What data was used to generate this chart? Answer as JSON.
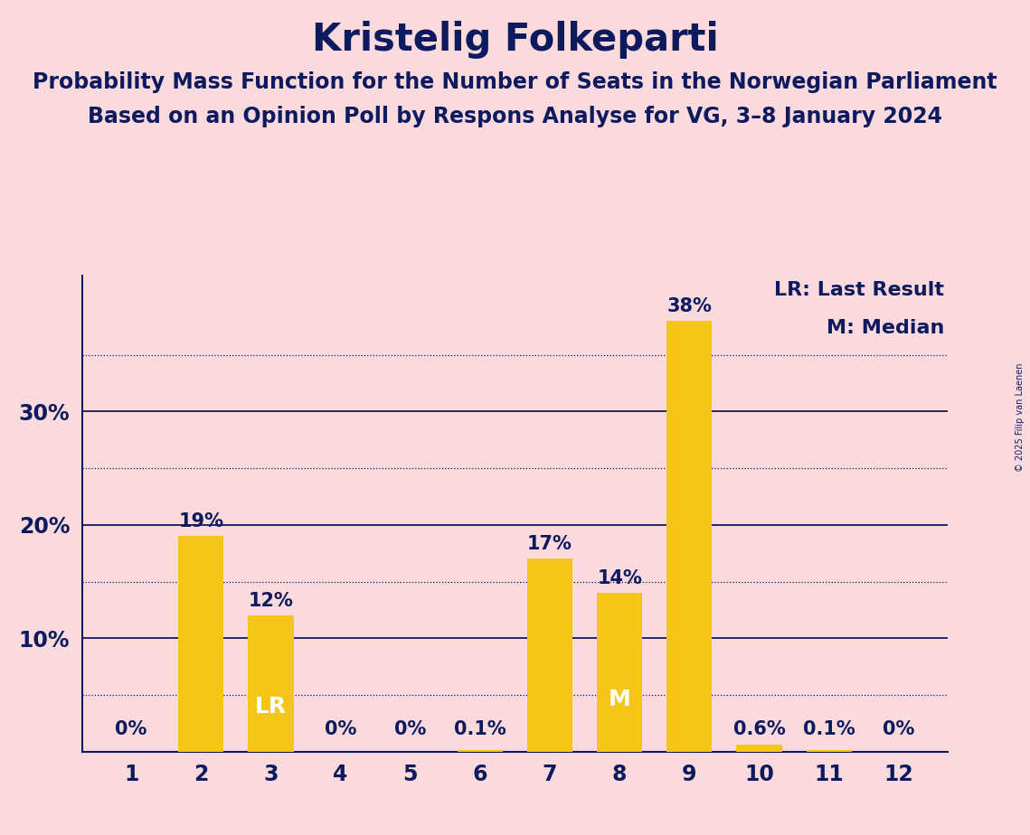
{
  "title": "Kristelig Folkeparti",
  "subtitle1": "Probability Mass Function for the Number of Seats in the Norwegian Parliament",
  "subtitle2": "Based on an Opinion Poll by Respons Analyse for VG, 3–8 January 2024",
  "copyright": "© 2025 Filip van Laenen",
  "categories": [
    1,
    2,
    3,
    4,
    5,
    6,
    7,
    8,
    9,
    10,
    11,
    12
  ],
  "values": [
    0.0,
    19.0,
    12.0,
    0.0,
    0.0,
    0.1,
    17.0,
    14.0,
    38.0,
    0.6,
    0.1,
    0.0
  ],
  "bar_labels": [
    "0%",
    "19%",
    "12%",
    "0%",
    "0%",
    "0.1%",
    "17%",
    "14%",
    "38%",
    "0.6%",
    "0.1%",
    "0%"
  ],
  "bar_color": "#F5C518",
  "background_color": "#FADADD",
  "text_color": "#0D1B5E",
  "title_fontsize": 30,
  "subtitle_fontsize": 17,
  "label_fontsize": 15,
  "tick_fontsize": 17,
  "ylim": [
    0,
    42
  ],
  "solid_gridlines": [
    10,
    20,
    30
  ],
  "dotted_gridlines": [
    5,
    15,
    25,
    35
  ],
  "lr_bar": 3,
  "median_bar": 8,
  "legend_lr": "LR: Last Result",
  "legend_m": "M: Median",
  "legend_fontsize": 16
}
